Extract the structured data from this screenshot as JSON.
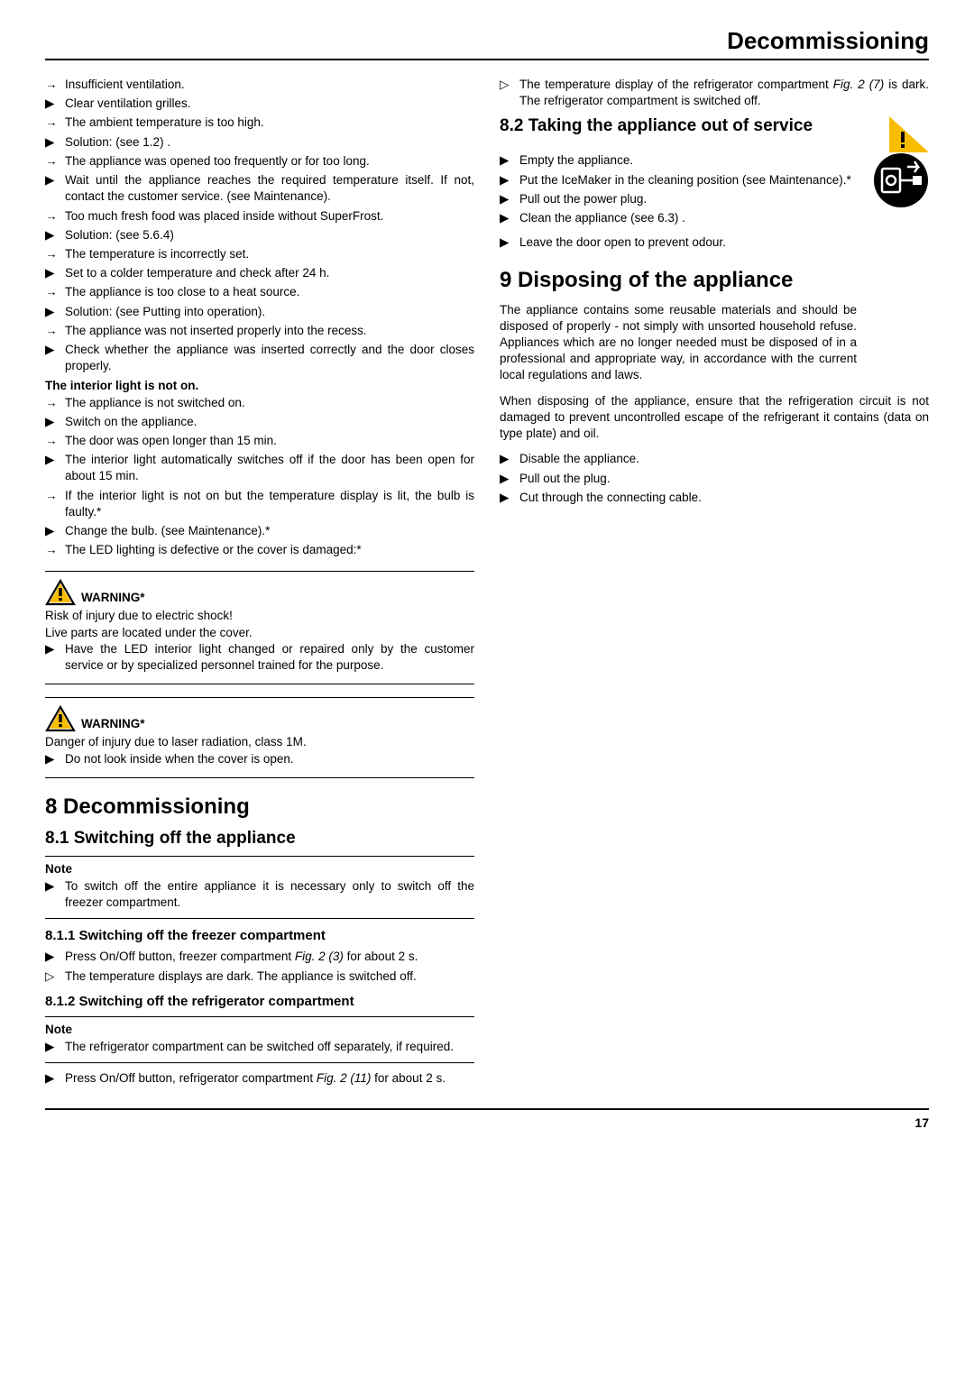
{
  "page_title": "Decommissioning",
  "page_number": "17",
  "left_col": {
    "trouble_items": [
      {
        "m": "→",
        "t": "Insufficient ventilation."
      },
      {
        "m": "▶",
        "t": "Clear ventilation grilles."
      },
      {
        "m": "→",
        "t": "The ambient temperature is too high."
      },
      {
        "m": "▶",
        "t": "Solution: (see 1.2) ."
      },
      {
        "m": "→",
        "t": "The appliance was opened too frequently or for too long."
      },
      {
        "m": "▶",
        "t": "Wait until the appliance reaches the required temperature itself. If not, contact the customer service. (see Maintenance)."
      },
      {
        "m": "→",
        "t": "Too much fresh food was placed inside without SuperFrost."
      },
      {
        "m": "▶",
        "t": "Solution: (see 5.6.4)"
      },
      {
        "m": "→",
        "t": "The temperature is incorrectly set."
      },
      {
        "m": "▶",
        "t": "Set to a colder temperature and check after 24 h."
      },
      {
        "m": "→",
        "t": "The appliance is too close to a heat source."
      },
      {
        "m": "▶",
        "t": "Solution: (see Putting into operation)."
      },
      {
        "m": "→",
        "t": "The appliance was not inserted properly into the recess."
      },
      {
        "m": "▶",
        "t": "Check whether the appliance was inserted correctly and the door closes properly."
      }
    ],
    "interior_heading": "The interior light is not on.",
    "interior_items": [
      {
        "m": "→",
        "t": "The appliance is not switched on."
      },
      {
        "m": "▶",
        "t": "Switch on the appliance."
      },
      {
        "m": "→",
        "t": "The door was open longer than 15 min."
      },
      {
        "m": "▶",
        "t": "The interior light automatically switches off if the door has been open for about 15 min."
      },
      {
        "m": "→",
        "t": "If the interior light is not on but the temperature display is lit, the bulb is faulty.*"
      },
      {
        "m": "▶",
        "t": "Change the bulb. (see Maintenance).*"
      },
      {
        "m": "→",
        "t": "The LED lighting is defective or the cover is damaged:*"
      }
    ],
    "warning1": {
      "title": "WARNING*",
      "line1": "Risk of injury due to electric shock!",
      "line2": "Live parts are located under the cover.",
      "action": "Have the LED interior light changed or repaired only by the customer service or by specialized personnel trained for the purpose."
    },
    "warning2": {
      "title": "WARNING*",
      "line1": "Danger of injury due to laser radiation, class 1M.",
      "action": "Do not look inside when the cover is open."
    },
    "sec8": "8 Decommissioning",
    "sec8_1": "8.1 Switching off the appliance",
    "note1": {
      "title": "Note",
      "action": "To switch off the entire appliance it is necessary only to switch off the freezer compartment."
    },
    "sec8_1_1": "8.1.1 Switching off the freezer compartment",
    "s811_items": [
      {
        "m": "▶",
        "pre": "Press On/Off button, freezer compartment ",
        "it": "Fig. 2 (3)",
        "post": " for about 2 s."
      },
      {
        "m": "▷",
        "pre": "The temperature displays are dark. The appliance is switched off.",
        "it": "",
        "post": ""
      }
    ],
    "sec8_1_2": "8.1.2 Switching off the refrigerator compartment",
    "note2": {
      "title": "Note",
      "action": "The refrigerator compartment can be switched off separately, if required."
    },
    "s812_items": [
      {
        "m": "▶",
        "pre": "Press On/Off button, refrigerator compartment ",
        "it": "Fig. 2 (11)",
        "post": " for about 2 s."
      }
    ]
  },
  "right_col": {
    "top_item_pre": "The temperature display of the refrigerator compartment ",
    "top_item_it": "Fig. 2 (7)",
    "top_item_post": " is dark. The refrigerator compartment is switched off.",
    "sec8_2": "8.2 Taking the appliance out of service",
    "s82_items": [
      {
        "m": "▶",
        "t": "Empty the appliance."
      },
      {
        "m": "▶",
        "t": "Put the IceMaker in the cleaning position (see Maintenance).*"
      },
      {
        "m": "▶",
        "t": "Pull out the power plug."
      },
      {
        "m": "▶",
        "t": "Clean the appliance (see 6.3) ."
      }
    ],
    "s82_last": "Leave the door open to prevent odour.",
    "sec9": "9 Disposing of the appliance",
    "disp_para1": "The appliance contains some reusable materials and should be disposed of properly - not simply with unsorted household refuse. Appliances which are no longer needed must be disposed of in a professional and appropriate way, in accordance with the current local regulations and laws.",
    "disp_para2": "When disposing of the appliance, ensure that the refrigeration circuit is not damaged to prevent uncontrolled escape of the refrigerant it contains (data on type plate) and oil.",
    "disp_items": [
      {
        "m": "▶",
        "t": "Disable the appliance."
      },
      {
        "m": "▶",
        "t": "Pull out the plug."
      },
      {
        "m": "▶",
        "t": "Cut through the connecting cable."
      }
    ]
  },
  "icons": {
    "warning_triangle": {
      "stroke": "#000000",
      "fill": "#f9bd00",
      "size": 34
    },
    "edge_warning": {
      "stroke": "#000000",
      "fill": "#f9bd00",
      "w": 44,
      "h": 40
    },
    "recycle_circle": {
      "fill": "#000000",
      "size": 62
    }
  }
}
